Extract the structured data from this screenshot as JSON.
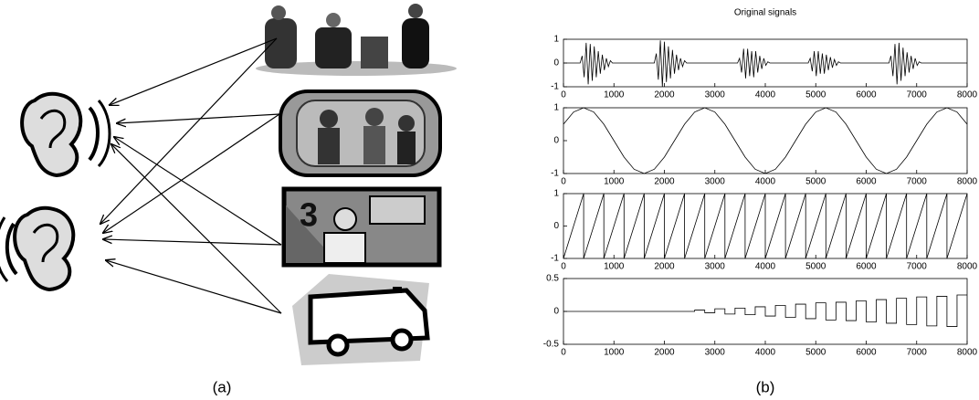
{
  "figure": {
    "captions": [
      "(a)",
      "(b)"
    ]
  },
  "chart_data": [
    {
      "type": "line",
      "title": "Original signals",
      "color": "#000000",
      "x": [
        0,
        330,
        370,
        410,
        450,
        490,
        530,
        570,
        610,
        650,
        690,
        730,
        770,
        810,
        850,
        890,
        930,
        970,
        1800,
        1840,
        1880,
        1920,
        1960,
        2000,
        2040,
        2080,
        2120,
        2160,
        2200,
        2240,
        2280,
        2320,
        2360,
        2400,
        2440,
        3450,
        3490,
        3530,
        3570,
        3610,
        3650,
        3690,
        3730,
        3770,
        3810,
        3850,
        3890,
        3930,
        3970,
        4010,
        4050,
        4090,
        4850,
        4890,
        4930,
        4970,
        5010,
        5050,
        5090,
        5130,
        5170,
        5210,
        5250,
        5290,
        5330,
        5370,
        5410,
        5450,
        5490,
        6450,
        6490,
        6530,
        6570,
        6610,
        6650,
        6690,
        6730,
        6770,
        6810,
        6850,
        6890,
        6930,
        6970,
        7010,
        7050,
        7090,
        8000
      ],
      "values": [
        0,
        0,
        0.3,
        -0.6,
        0.85,
        -0.9,
        0.8,
        -0.75,
        0.7,
        -0.6,
        0.5,
        -0.45,
        0.35,
        -0.3,
        0.2,
        -0.15,
        0.1,
        0,
        0,
        0.4,
        -0.7,
        0.95,
        -1,
        0.9,
        -0.8,
        0.7,
        -0.65,
        0.55,
        -0.45,
        0.35,
        -0.3,
        0.2,
        -0.15,
        0.1,
        0,
        0,
        0.2,
        -0.4,
        0.6,
        -0.65,
        0.6,
        -0.55,
        0.5,
        -0.6,
        0.5,
        -0.4,
        0.3,
        -0.25,
        0.2,
        -0.1,
        0.05,
        0,
        0,
        0.2,
        -0.35,
        0.5,
        -0.55,
        0.5,
        -0.45,
        0.4,
        -0.45,
        0.35,
        -0.3,
        0.25,
        -0.2,
        0.15,
        -0.1,
        0.05,
        0,
        0,
        0.3,
        -0.55,
        0.8,
        -0.9,
        0.85,
        -0.75,
        0.65,
        -0.55,
        0.45,
        -0.4,
        0.3,
        -0.25,
        0.2,
        -0.1,
        0.05,
        0,
        0
      ],
      "xlim": [
        0,
        8000
      ],
      "xticks": [
        0,
        1000,
        2000,
        3000,
        4000,
        5000,
        6000,
        7000,
        8000
      ],
      "ylim": [
        -1,
        1
      ],
      "yticks": [
        -1,
        0,
        1
      ]
    },
    {
      "type": "line",
      "color": "#000000",
      "x": [
        0,
        200,
        400,
        600,
        800,
        1000,
        1200,
        1400,
        1600,
        1800,
        2000,
        2200,
        2400,
        2600,
        2800,
        3000,
        3200,
        3400,
        3600,
        3800,
        4000,
        4200,
        4400,
        4600,
        4800,
        5000,
        5200,
        5400,
        5600,
        5800,
        6000,
        6200,
        6400,
        6600,
        6800,
        7000,
        7200,
        7400,
        7600,
        7800,
        8000
      ],
      "values": [
        0.5,
        0.87,
        1,
        0.87,
        0.5,
        0,
        -0.5,
        -0.87,
        -1,
        -0.87,
        -0.5,
        0,
        0.5,
        0.87,
        1,
        0.87,
        0.5,
        0,
        -0.5,
        -0.87,
        -1,
        -0.87,
        -0.5,
        0,
        0.5,
        0.87,
        1,
        0.87,
        0.5,
        0,
        -0.5,
        -0.87,
        -1,
        -0.87,
        -0.5,
        0,
        0.5,
        0.87,
        1,
        0.87,
        0.5
      ],
      "xlim": [
        0,
        8000
      ],
      "xticks": [
        0,
        1000,
        2000,
        3000,
        4000,
        5000,
        6000,
        7000,
        8000
      ],
      "ylim": [
        -1,
        1
      ],
      "yticks": [
        -1,
        0,
        1
      ]
    },
    {
      "type": "line",
      "color": "#000000",
      "x": [
        0,
        400,
        400,
        800,
        800,
        1200,
        1200,
        1600,
        1600,
        2000,
        2000,
        2400,
        2400,
        2800,
        2800,
        3200,
        3200,
        3600,
        3600,
        4000,
        4000,
        4400,
        4400,
        4800,
        4800,
        5200,
        5200,
        5600,
        5600,
        6000,
        6000,
        6400,
        6400,
        6800,
        6800,
        7200,
        7200,
        7600,
        7600,
        8000
      ],
      "values": [
        -1,
        1,
        -1,
        1,
        -1,
        1,
        -1,
        1,
        -1,
        1,
        -1,
        1,
        -1,
        1,
        -1,
        1,
        -1,
        1,
        -1,
        1,
        -1,
        1,
        -1,
        1,
        -1,
        1,
        -1,
        1,
        -1,
        1,
        -1,
        1,
        -1,
        1,
        -1,
        1,
        -1,
        1,
        -1,
        1
      ],
      "xlim": [
        0,
        8000
      ],
      "xticks": [
        0,
        1000,
        2000,
        3000,
        4000,
        5000,
        6000,
        7000,
        8000
      ],
      "ylim": [
        -1,
        1
      ],
      "yticks": [
        -1,
        0,
        1
      ]
    },
    {
      "type": "line",
      "color": "#000000",
      "x": [
        0,
        2600,
        2600,
        2800,
        2800,
        3000,
        3000,
        3200,
        3200,
        3400,
        3400,
        3600,
        3600,
        3800,
        3800,
        4000,
        4000,
        4200,
        4200,
        4400,
        4400,
        4600,
        4600,
        4800,
        4800,
        5000,
        5000,
        5200,
        5200,
        5400,
        5400,
        5600,
        5600,
        5800,
        5800,
        6000,
        6000,
        6200,
        6200,
        6400,
        6400,
        6600,
        6600,
        6800,
        6800,
        7000,
        7000,
        7200,
        7200,
        7400,
        7400,
        7600,
        7600,
        7800,
        7800,
        8000
      ],
      "values": [
        0,
        0,
        0.02,
        0.02,
        -0.02,
        -0.02,
        0.04,
        0.04,
        -0.04,
        -0.04,
        0.05,
        0.05,
        -0.05,
        -0.05,
        0.07,
        0.07,
        -0.07,
        -0.07,
        0.09,
        0.09,
        -0.09,
        -0.09,
        0.11,
        0.11,
        -0.11,
        -0.11,
        0.13,
        0.13,
        -0.13,
        -0.13,
        0.14,
        0.14,
        -0.14,
        -0.14,
        0.16,
        0.16,
        -0.16,
        -0.16,
        0.18,
        0.18,
        -0.18,
        -0.18,
        0.2,
        0.2,
        -0.2,
        -0.2,
        0.22,
        0.22,
        -0.22,
        -0.22,
        0.23,
        0.23,
        -0.23,
        -0.23,
        0.25,
        0.25
      ],
      "xlim": [
        0,
        8000
      ],
      "xticks": [
        0,
        1000,
        2000,
        3000,
        4000,
        5000,
        6000,
        7000,
        8000
      ],
      "ylim": [
        -0.5,
        0.5
      ],
      "yticks": [
        -0.5,
        0,
        0.5
      ]
    }
  ]
}
